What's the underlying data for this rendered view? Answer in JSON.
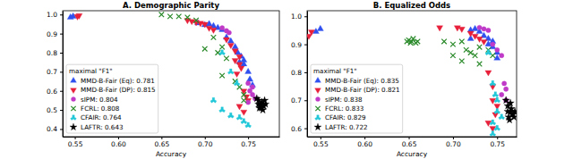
{
  "chart_data": [
    {
      "type": "scatter",
      "title": "A. Demographic Parity",
      "x_label": "Accuracy",
      "xlim": [
        0.536,
        0.786
      ],
      "ylim": [
        0.36,
        1.02
      ],
      "xticks": [
        0.55,
        {
          "value": 0.6,
          "label": "0.60"
        },
        0.65,
        {
          "value": 0.7,
          "label": "0.70"
        },
        0.75
      ],
      "yticks": [
        0.4,
        0.5,
        0.6,
        0.7,
        0.8,
        0.9,
        {
          "value": 1.0,
          "label": "1.0"
        }
      ],
      "legend": "lower left",
      "legend_title": "maximal \"F1\"",
      "series": [
        {
          "name": "MMD-B-Fair (Eq): 0.781",
          "color": "#3050f0",
          "marker": "triangle-up",
          "x": [
            0.545,
            0.548,
            0.692,
            0.7,
            0.705,
            0.71,
            0.715,
            0.72,
            0.725,
            0.73,
            0.735,
            0.738,
            0.742,
            0.745,
            0.745,
            0.74,
            0.75,
            0.752,
            0.755
          ],
          "values": [
            0.985,
            0.99,
            0.955,
            0.945,
            0.95,
            0.94,
            0.93,
            0.92,
            0.88,
            0.86,
            0.83,
            0.8,
            0.78,
            0.76,
            0.74,
            0.75,
            0.7,
            0.66,
            0.63
          ]
        },
        {
          "name": "MMD-B-Fair (DP): 0.815",
          "color": "#e8203a",
          "marker": "triangle-down",
          "x": [
            0.553,
            0.555,
            0.68,
            0.685,
            0.69,
            0.695,
            0.7,
            0.705,
            0.71,
            0.725,
            0.73,
            0.735,
            0.74,
            0.735,
            0.74,
            0.742,
            0.737,
            0.745,
            0.748,
            0.74,
            0.745,
            0.75
          ],
          "values": [
            0.99,
            0.995,
            0.97,
            0.965,
            0.96,
            0.955,
            0.95,
            0.93,
            0.92,
            0.87,
            0.84,
            0.81,
            0.78,
            0.76,
            0.74,
            0.72,
            0.69,
            0.6,
            0.57,
            0.52,
            0.49,
            0.55
          ]
        },
        {
          "name": "sIPM: 0.804",
          "color": "#c03ac8",
          "marker": "circle",
          "x": [
            0.72,
            0.725,
            0.728,
            0.75,
            0.752,
            0.755,
            0.758,
            0.75,
            0.755
          ],
          "values": [
            0.93,
            0.915,
            0.905,
            0.64,
            0.6,
            0.58,
            0.56,
            0.54,
            0.62
          ]
        },
        {
          "name": "FCRL: 0.808",
          "color": "#2a8a2a",
          "marker": "x",
          "x": [
            0.65,
            0.66,
            0.67,
            0.68,
            0.69,
            0.71,
            0.72,
            0.7,
            0.715,
            0.725,
            0.735,
            0.74,
            0.745,
            0.72,
            0.745
          ],
          "values": [
            1.0,
            0.99,
            0.99,
            0.985,
            0.97,
            0.88,
            0.83,
            0.82,
            0.8,
            0.77,
            0.65,
            0.62,
            0.58,
            0.68,
            0.55
          ]
        },
        {
          "name": "CFAIR: 0.764",
          "color": "#22c8d8",
          "marker": "tri-down",
          "x": [
            0.72,
            0.73,
            0.737,
            0.71,
            0.72,
            0.74,
            0.745,
            0.75,
            0.73
          ],
          "values": [
            0.8,
            0.7,
            0.64,
            0.55,
            0.5,
            0.46,
            0.44,
            0.42,
            0.47
          ]
        },
        {
          "name": "LAFTR: 0.643",
          "color": "#000000",
          "marker": "star",
          "x": [
            0.762,
            0.765,
            0.768,
            0.763,
            0.766,
            0.77,
            0.76,
            0.764,
            0.767,
            0.762,
            0.769,
            0.765
          ],
          "values": [
            0.55,
            0.53,
            0.52,
            0.51,
            0.54,
            0.53,
            0.56,
            0.52,
            0.5,
            0.53,
            0.55,
            0.51
          ]
        }
      ]
    },
    {
      "type": "scatter",
      "title": "B. Equalized Odds",
      "x_label": "Accuracy",
      "xlim": [
        0.535,
        0.772
      ],
      "ylim": [
        0.57,
        1.02
      ],
      "xticks": [
        0.55,
        {
          "value": 0.6,
          "label": "0.60"
        },
        0.65,
        {
          "value": 0.7,
          "label": "0.70"
        },
        0.75
      ],
      "yticks": [
        0.6,
        0.7,
        0.8,
        0.9,
        {
          "value": 1.0,
          "label": "1.0"
        }
      ],
      "legend": "lower left",
      "legend_title": "maximal \"F1\"",
      "series": [
        {
          "name": "MMD-B-Fair (Eq): 0.835",
          "color": "#3050f0",
          "marker": "triangle-up",
          "x": [
            0.545,
            0.55,
            0.72,
            0.725,
            0.73,
            0.735,
            0.74,
            0.745,
            0.74,
            0.745,
            0.75,
            0.75,
            0.72
          ],
          "values": [
            0.945,
            0.955,
            0.95,
            0.955,
            0.945,
            0.93,
            0.92,
            0.91,
            0.9,
            0.89,
            0.87,
            0.85,
            0.92
          ]
        },
        {
          "name": "MMD-B-Fair (DP): 0.821",
          "color": "#e8203a",
          "marker": "triangle-down",
          "x": [
            0.537,
            0.54,
            0.685,
            0.705,
            0.71,
            0.72,
            0.725,
            0.73,
            0.735,
            0.74,
            0.745,
            0.745,
            0.748,
            0.74,
            0.745,
            0.75
          ],
          "values": [
            0.93,
            0.945,
            0.96,
            0.96,
            0.955,
            0.94,
            0.93,
            0.92,
            0.91,
            0.8,
            0.75,
            0.7,
            0.65,
            0.62,
            0.6,
            0.68
          ]
        },
        {
          "name": "sIPM: 0.838",
          "color": "#c03ac8",
          "marker": "circle",
          "x": [
            0.73,
            0.735,
            0.74,
            0.75,
            0.755,
            0.745,
            0.758,
            0.76,
            0.755,
            0.76
          ],
          "values": [
            0.96,
            0.955,
            0.95,
            0.88,
            0.86,
            0.9,
            0.76,
            0.74,
            0.72,
            0.7
          ]
        },
        {
          "name": "FCRL: 0.833",
          "color": "#2a8a2a",
          "marker": "x",
          "x": [
            0.648,
            0.65,
            0.653,
            0.655,
            0.658,
            0.66,
            0.652,
            0.7,
            0.71,
            0.715,
            0.72,
            0.725,
            0.73,
            0.74,
            0.745,
            0.7,
            0.71,
            0.73,
            0.69
          ],
          "values": [
            0.91,
            0.915,
            0.91,
            0.92,
            0.905,
            0.91,
            0.905,
            0.9,
            0.91,
            0.88,
            0.87,
            0.86,
            0.89,
            0.88,
            0.86,
            0.86,
            0.84,
            0.83,
            0.91
          ]
        },
        {
          "name": "CFAIR: 0.829",
          "color": "#22c8d8",
          "marker": "tri-down",
          "x": [
            0.74,
            0.745,
            0.748,
            0.75,
            0.745,
            0.75,
            0.745,
            0.755,
            0.75
          ],
          "values": [
            0.87,
            0.76,
            0.72,
            0.66,
            0.62,
            0.6,
            0.58,
            0.64,
            0.7
          ]
        },
        {
          "name": "LAFTR: 0.722",
          "color": "#000000",
          "marker": "star",
          "x": [
            0.762,
            0.765,
            0.768,
            0.763,
            0.766,
            0.77,
            0.76,
            0.764,
            0.767,
            0.762,
            0.769,
            0.765
          ],
          "values": [
            0.68,
            0.66,
            0.65,
            0.64,
            0.67,
            0.66,
            0.7,
            0.63,
            0.65,
            0.66,
            0.64,
            0.69
          ]
        }
      ]
    }
  ]
}
